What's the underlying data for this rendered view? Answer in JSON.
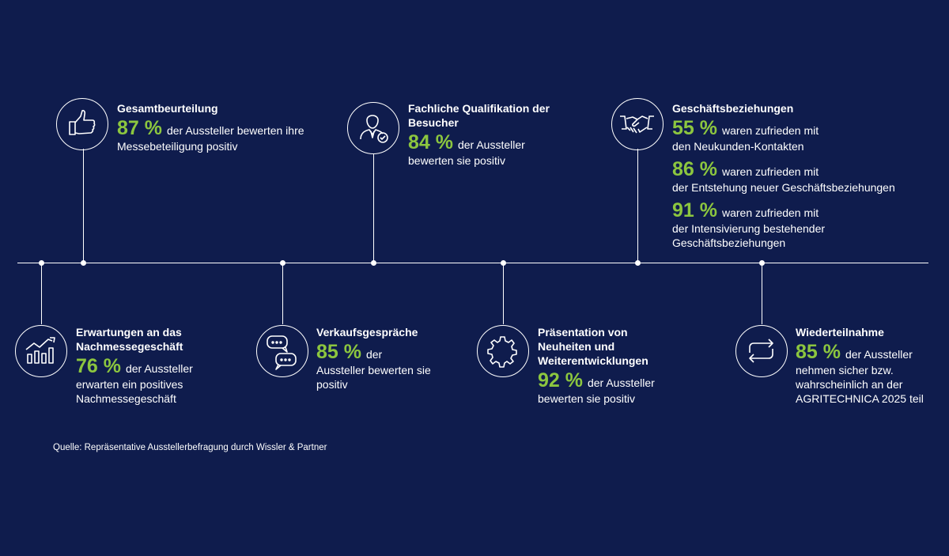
{
  "timeline": {
    "top": [
      {
        "id": "gesamt",
        "title": "Gesamtbeurteilung",
        "stats": [
          {
            "pct": "87 %",
            "text": "der Aussteller bewerten ihre Messebeteiligung positiv"
          }
        ],
        "icon": "thumbs-up-icon"
      },
      {
        "id": "qualifikation",
        "title": "Fachliche Qualifikation der Besucher",
        "stats": [
          {
            "pct": "84 %",
            "text": "der Aussteller bewerten sie positiv"
          }
        ],
        "icon": "businessman-check-icon"
      },
      {
        "id": "geschaeft",
        "title": "Geschäftsbeziehungen",
        "stats": [
          {
            "pct": "55 %",
            "text1": "waren zufrieden mit",
            "text2": "den Neukunden-Kontakten"
          },
          {
            "pct": "86 %",
            "text1": "waren zufrieden mit",
            "text2": "der Entstehung neuer Geschäftsbeziehungen"
          },
          {
            "pct": "91 %",
            "text1": "waren zufrieden mit",
            "text2": "der Intensivierung bestehender Geschäftsbeziehungen"
          }
        ],
        "icon": "handshake-icon"
      }
    ],
    "bottom": [
      {
        "id": "erwartungen",
        "title": "Erwartungen an das Nachmessegeschäft",
        "stats": [
          {
            "pct": "76 %",
            "text": "der Aussteller erwarten ein positives Nachmessegeschäft"
          }
        ],
        "icon": "growth-chart-icon"
      },
      {
        "id": "verkauf",
        "title": "Verkaufsgespräche",
        "stats": [
          {
            "pct": "85 %",
            "text": "der Aussteller bewerten sie positiv"
          }
        ],
        "icon": "speech-bubbles-icon"
      },
      {
        "id": "praesentation",
        "title": "Präsentation von Neuheiten und Weiterentwicklungen",
        "stats": [
          {
            "pct": "92 %",
            "text": "der Aussteller bewerten sie positiv"
          }
        ],
        "icon": "gear-icon"
      },
      {
        "id": "wiederteilnahme",
        "title": "Wiederteilnahme",
        "stats": [
          {
            "pct": "85 %",
            "text": "der Aussteller nehmen sicher bzw. wahrscheinlich an der AGRITECHNICA 2025 teil"
          }
        ],
        "icon": "refresh-arrows-icon"
      }
    ]
  },
  "source": "Quelle: Repräsentative Ausstellerbefragung durch Wissler & Partner",
  "colors": {
    "background": "#0f1c4d",
    "accent": "#8cc63f",
    "text": "#ffffff"
  }
}
